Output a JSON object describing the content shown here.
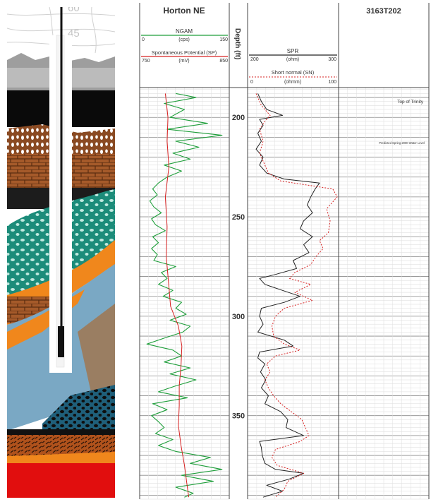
{
  "colors": {
    "ngam": "#1e9e3a",
    "sp": "#d62020",
    "spr": "#222222",
    "sn": "#d62020",
    "grid": "#9a9a9a",
    "border": "#444444"
  },
  "header": {
    "well_name": "Horton NE",
    "well_id": "3163T202",
    "depth_label": "Depth (ft)",
    "ngam": {
      "label": "NGAM",
      "unit": "(cps)",
      "min": "0",
      "max": "150"
    },
    "sp": {
      "label": "Spontaneous Potential (SP)",
      "unit": "(mV)",
      "min": "750",
      "max": "850"
    },
    "spr": {
      "label": "SPR",
      "unit": "(ohm)",
      "min": "200",
      "max": "300"
    },
    "sn": {
      "label": "Short normal (SN)",
      "unit": "(ohmm)",
      "min": "0",
      "max": "100"
    }
  },
  "annotations": {
    "top_of_trinity": "Top of Trinity",
    "water_level": "Predicted Spring 2000 Water Level"
  },
  "illustration_labels": [
    "60",
    "45"
  ],
  "chart_data": {
    "type": "line",
    "depth_axis": {
      "label": "Depth (ft)",
      "ticks": [
        200,
        250,
        300,
        350
      ],
      "range": [
        185,
        392
      ],
      "reversed": true
    },
    "tracks": [
      {
        "name": "gamma-sp",
        "series": [
          {
            "name": "NGAM",
            "unit": "cps",
            "xlim": [
              0,
              150
            ],
            "style": "solid",
            "depth": [
              188,
              190,
              193,
              196,
              200,
              203,
              206,
              209,
              212,
              215,
              218,
              221,
              224,
              227,
              230,
              233,
              236,
              239,
              242,
              245,
              248,
              251,
              254,
              257,
              260,
              263,
              266,
              269,
              272,
              275,
              278,
              281,
              284,
              287,
              290,
              293,
              296,
              299,
              302,
              305,
              308,
              311,
              314,
              317,
              320,
              323,
              326,
              329,
              332,
              335,
              338,
              341,
              344,
              347,
              350,
              353,
              356,
              359,
              362,
              365,
              368,
              371,
              374,
              377,
              380,
              383,
              386,
              389,
              391
            ],
            "values": [
              60,
              95,
              40,
              75,
              50,
              115,
              45,
              140,
              60,
              100,
              55,
              85,
              40,
              70,
              45,
              30,
              20,
              28,
              15,
              22,
              35,
              18,
              25,
              42,
              20,
              30,
              18,
              28,
              22,
              60,
              35,
              45,
              30,
              55,
              38,
              70,
              60,
              78,
              50,
              85,
              72,
              40,
              10,
              55,
              70,
              40,
              85,
              50,
              95,
              60,
              30,
              80,
              20,
              45,
              18,
              30,
              40,
              25,
              55,
              30,
              60,
              120,
              85,
              140,
              70,
              125,
              60,
              90,
              75
            ]
          },
          {
            "name": "Spontaneous Potential (SP)",
            "unit": "mV",
            "xlim": [
              750,
              850
            ],
            "style": "solid",
            "depth": [
              188,
              200,
              212,
              225,
              240,
              255,
              270,
              285,
              295,
              305,
              315,
              325,
              335,
              345,
              355,
              365,
              375,
              385,
              391
            ],
            "values": [
              778,
              781,
              780,
              782,
              778,
              780,
              779,
              782,
              784,
              793,
              797,
              796,
              794,
              794,
              793,
              796,
              800,
              803,
              805
            ]
          }
        ]
      },
      {
        "name": "resistivity",
        "series": [
          {
            "name": "SPR",
            "unit": "ohm",
            "xlim": [
              200,
              300
            ],
            "style": "solid",
            "depth": [
              188,
              192,
              196,
              199,
              201,
              204,
              208,
              212,
              216,
              220,
              224,
              228,
              231,
              233,
              236,
              240,
              244,
              248,
              252,
              256,
              260,
              264,
              268,
              272,
              276,
              279,
              281,
              284,
              287,
              290,
              293,
              296,
              300,
              304,
              308,
              312,
              315,
              318,
              321,
              324,
              328,
              332,
              336,
              340,
              344,
              348,
              352,
              356,
              360,
              363,
              366,
              370,
              374,
              377,
              379,
              382,
              385,
              388,
              391
            ],
            "values": [
              210,
              214,
              220,
              238,
              212,
              216,
              210,
              214,
              208,
              216,
              212,
              220,
              240,
              280,
              275,
              270,
              266,
              272,
              262,
              258,
              272,
              262,
              268,
              250,
              254,
              230,
              212,
              218,
              238,
              258,
              240,
              214,
              212,
              216,
              210,
              240,
              250,
              212,
              210,
              218,
              213,
              219,
              214,
              222,
              218,
              236,
              244,
              242,
              262,
              212,
              214,
              215,
              218,
              230,
              262,
              245,
              220,
              238,
              216
            ]
          },
          {
            "name": "Short normal (SN)",
            "unit": "ohmm",
            "xlim": [
              0,
              100
            ],
            "style": "dashed",
            "depth": [
              188,
              194,
              199,
              202,
              206,
              212,
              218,
              224,
              228,
              232,
              236,
              240,
              246,
              252,
              258,
              262,
              266,
              270,
              274,
              278,
              281,
              284,
              288,
              292,
              296,
              300,
              305,
              310,
              314,
              317,
              320,
              324,
              328,
              332,
              336,
              340,
              344,
              348,
              352,
              356,
              360,
              363,
              367,
              371,
              375,
              379,
              383,
              387,
              391
            ],
            "values": [
              8,
              14,
              24,
              18,
              12,
              16,
              12,
              18,
              22,
              36,
              95,
              100,
              88,
              92,
              90,
              80,
              84,
              76,
              70,
              52,
              46,
              70,
              52,
              72,
              40,
              30,
              26,
              28,
              40,
              58,
              30,
              20,
              24,
              18,
              22,
              28,
              36,
              48,
              60,
              64,
              68,
              58,
              30,
              26,
              32,
              62,
              44,
              40,
              30
            ]
          }
        ]
      }
    ]
  }
}
